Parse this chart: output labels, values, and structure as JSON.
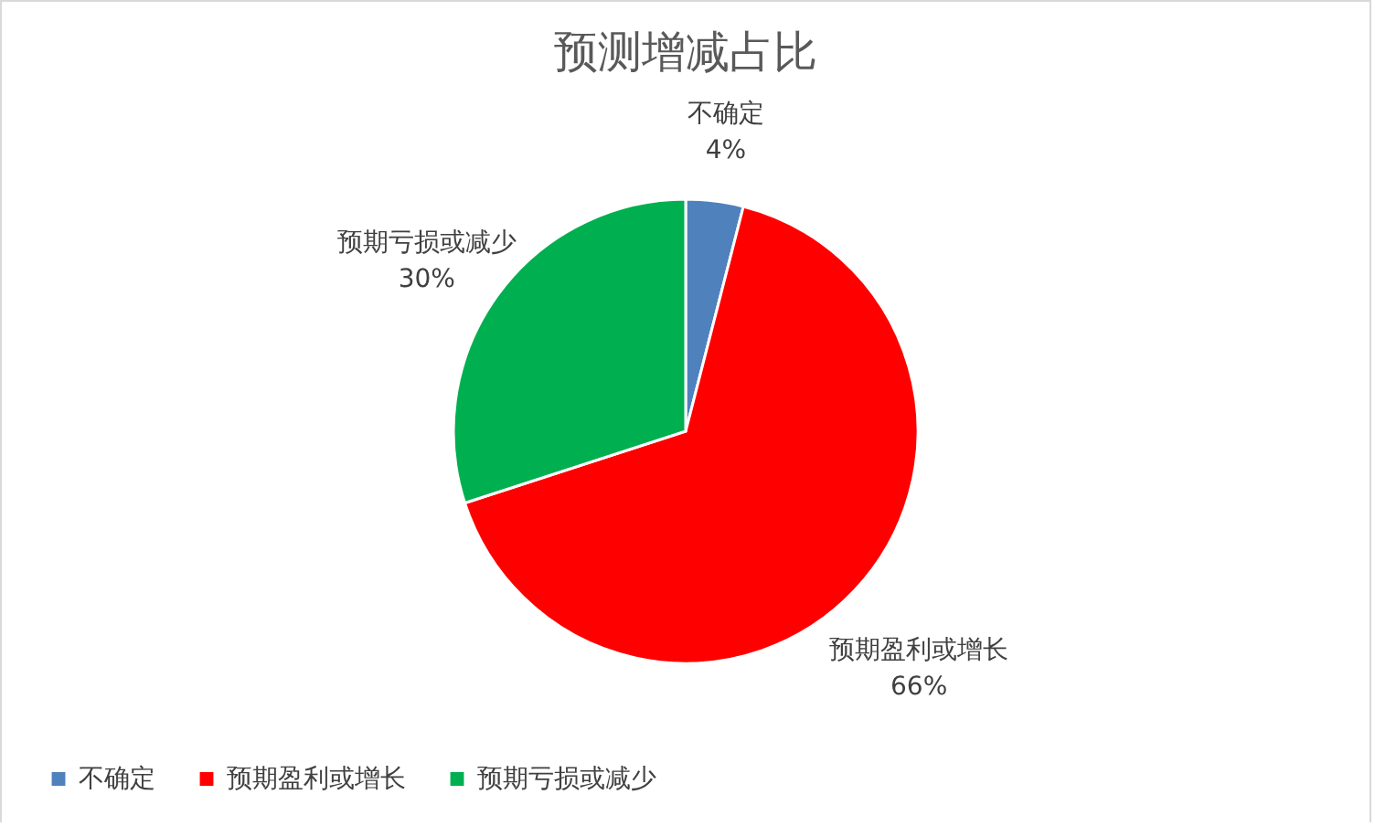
{
  "chart_data": {
    "type": "pie",
    "title": "预测增减占比",
    "categories": [
      "不确定",
      "预期盈利或增长",
      "预期亏损或减少"
    ],
    "values": [
      4,
      66,
      30
    ],
    "colors": [
      "#4f81bd",
      "#ff0000",
      "#00b050"
    ],
    "value_labels": [
      "4%",
      "66%",
      "30%"
    ],
    "legend": "bottom"
  }
}
